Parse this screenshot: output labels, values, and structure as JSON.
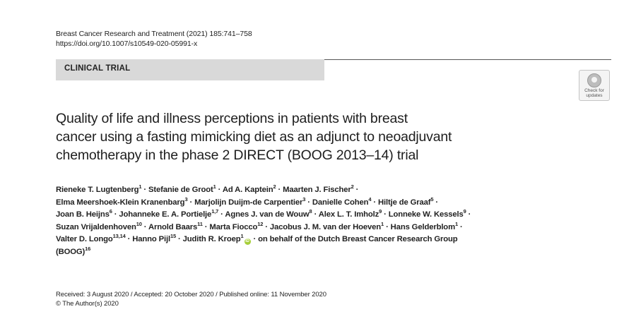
{
  "header": {
    "journal_citation": "Breast Cancer Research and Treatment (2021) 185:741–758",
    "doi": "https://doi.org/10.1007/s10549-020-05991-x"
  },
  "category": "CLINICAL TRIAL",
  "crossmark": {
    "label_line1": "Check for",
    "label_line2": "updates",
    "icon": "crossmark-icon"
  },
  "title": {
    "line1": "Quality of life and illness perceptions in patients with breast",
    "line2": "cancer using a fasting mimicking diet as an adjunct to neoadjuvant",
    "line3": "chemotherapy in the phase 2 DIRECT (BOOG 2013–14) trial"
  },
  "authors": [
    {
      "name": "Rieneke T. Lugtenberg",
      "aff": "1"
    },
    {
      "name": "Stefanie de Groot",
      "aff": "1"
    },
    {
      "name": "Ad A. Kaptein",
      "aff": "2"
    },
    {
      "name": "Maarten J. Fischer",
      "aff": "2"
    },
    {
      "name": "Elma Meershoek-Klein Kranenbarg",
      "aff": "3"
    },
    {
      "name": "Marjolijn Duijm-de Carpentier",
      "aff": "3"
    },
    {
      "name": "Danielle Cohen",
      "aff": "4"
    },
    {
      "name": "Hiltje de Graaf",
      "aff": "5"
    },
    {
      "name": "Joan B. Heijns",
      "aff": "6"
    },
    {
      "name": "Johanneke E. A. Portielje",
      "aff": "1,7"
    },
    {
      "name": "Agnes J. van de Wouw",
      "aff": "8"
    },
    {
      "name": "Alex L. T. Imholz",
      "aff": "9"
    },
    {
      "name": "Lonneke W. Kessels",
      "aff": "9"
    },
    {
      "name": "Suzan Vrijaldenhoven",
      "aff": "10"
    },
    {
      "name": "Arnold Baars",
      "aff": "11"
    },
    {
      "name": "Marta Fiocco",
      "aff": "12"
    },
    {
      "name": "Jacobus J. M. van der Hoeven",
      "aff": "1"
    },
    {
      "name": "Hans Gelderblom",
      "aff": "1"
    },
    {
      "name": "Valter D. Longo",
      "aff": "13,14"
    },
    {
      "name": "Hanno Pijl",
      "aff": "15"
    },
    {
      "name": "Judith R. Kroep",
      "aff": "1"
    },
    {
      "group_text": "on behalf of the Dutch Breast Cancer Research Group",
      "group_abbr": "(BOOG)",
      "aff": "16"
    }
  ],
  "dates_line": "Received: 3 August 2020 / Accepted: 20 October 2020 / Published online: 11 November 2020",
  "copyright": "© The Author(s) 2020"
}
